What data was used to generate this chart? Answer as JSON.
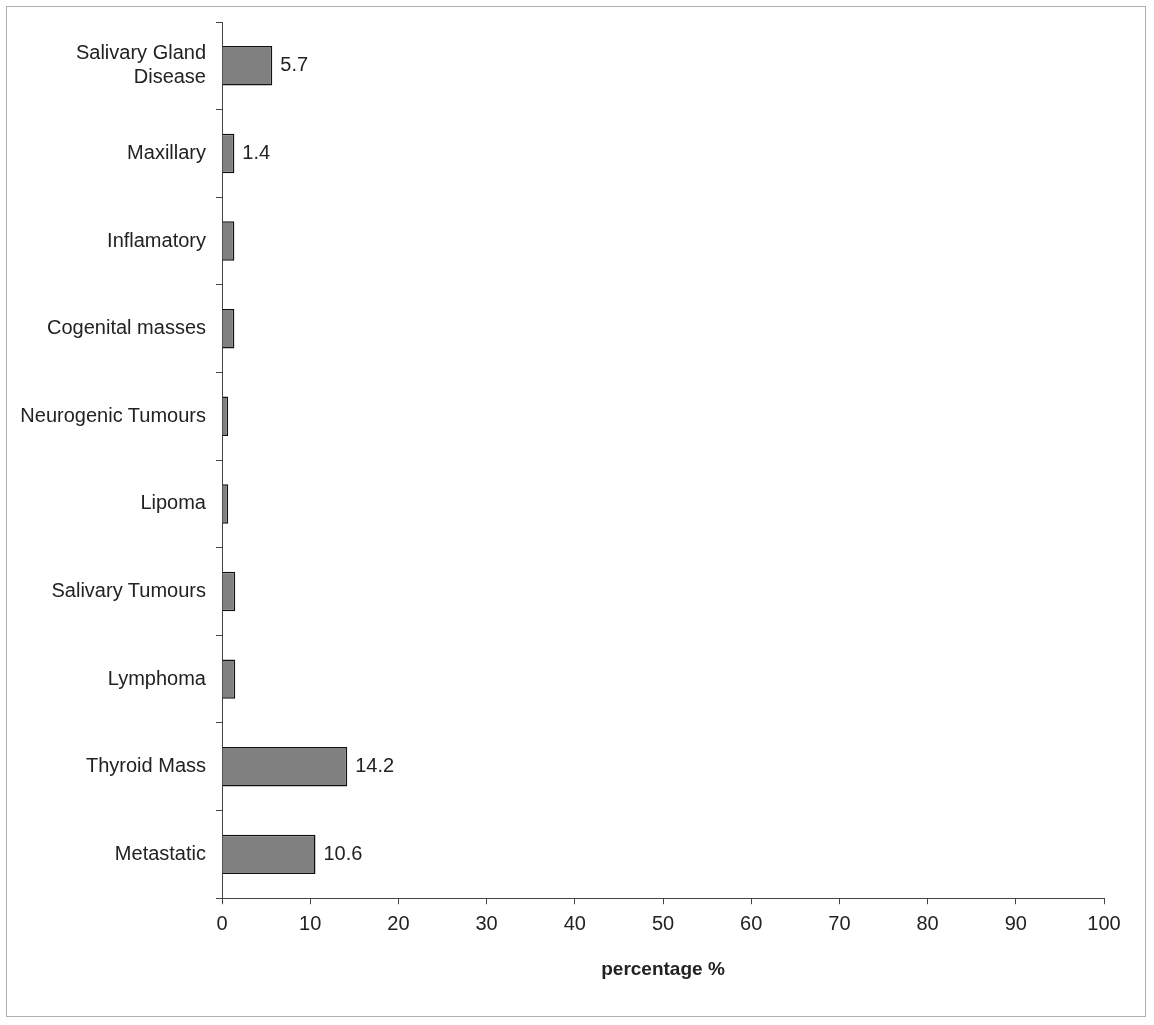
{
  "chart_data": {
    "type": "bar",
    "orientation": "horizontal",
    "categories": [
      "Salivary Gland Disease",
      "Maxillary",
      "Inflamatory",
      "Cogenital masses",
      "Neurogenic Tumours",
      "Lipoma",
      "Salivary Tumours",
      "Lymphoma",
      "Thyroid Mass",
      "Metastatic"
    ],
    "values": [
      5.7,
      1.4,
      1.4,
      1.4,
      0.7,
      0.7,
      1.5,
      1.5,
      14.2,
      10.6
    ],
    "value_labels": [
      "5.7",
      "1.4",
      null,
      null,
      null,
      null,
      null,
      null,
      "14.2",
      "10.6"
    ],
    "color": "#808080",
    "xlabel": "percentage %",
    "xlim": [
      0,
      100
    ],
    "xticks": [
      0,
      10,
      20,
      30,
      40,
      50,
      60,
      70,
      80,
      90,
      100
    ],
    "grid": false,
    "legend": false
  }
}
